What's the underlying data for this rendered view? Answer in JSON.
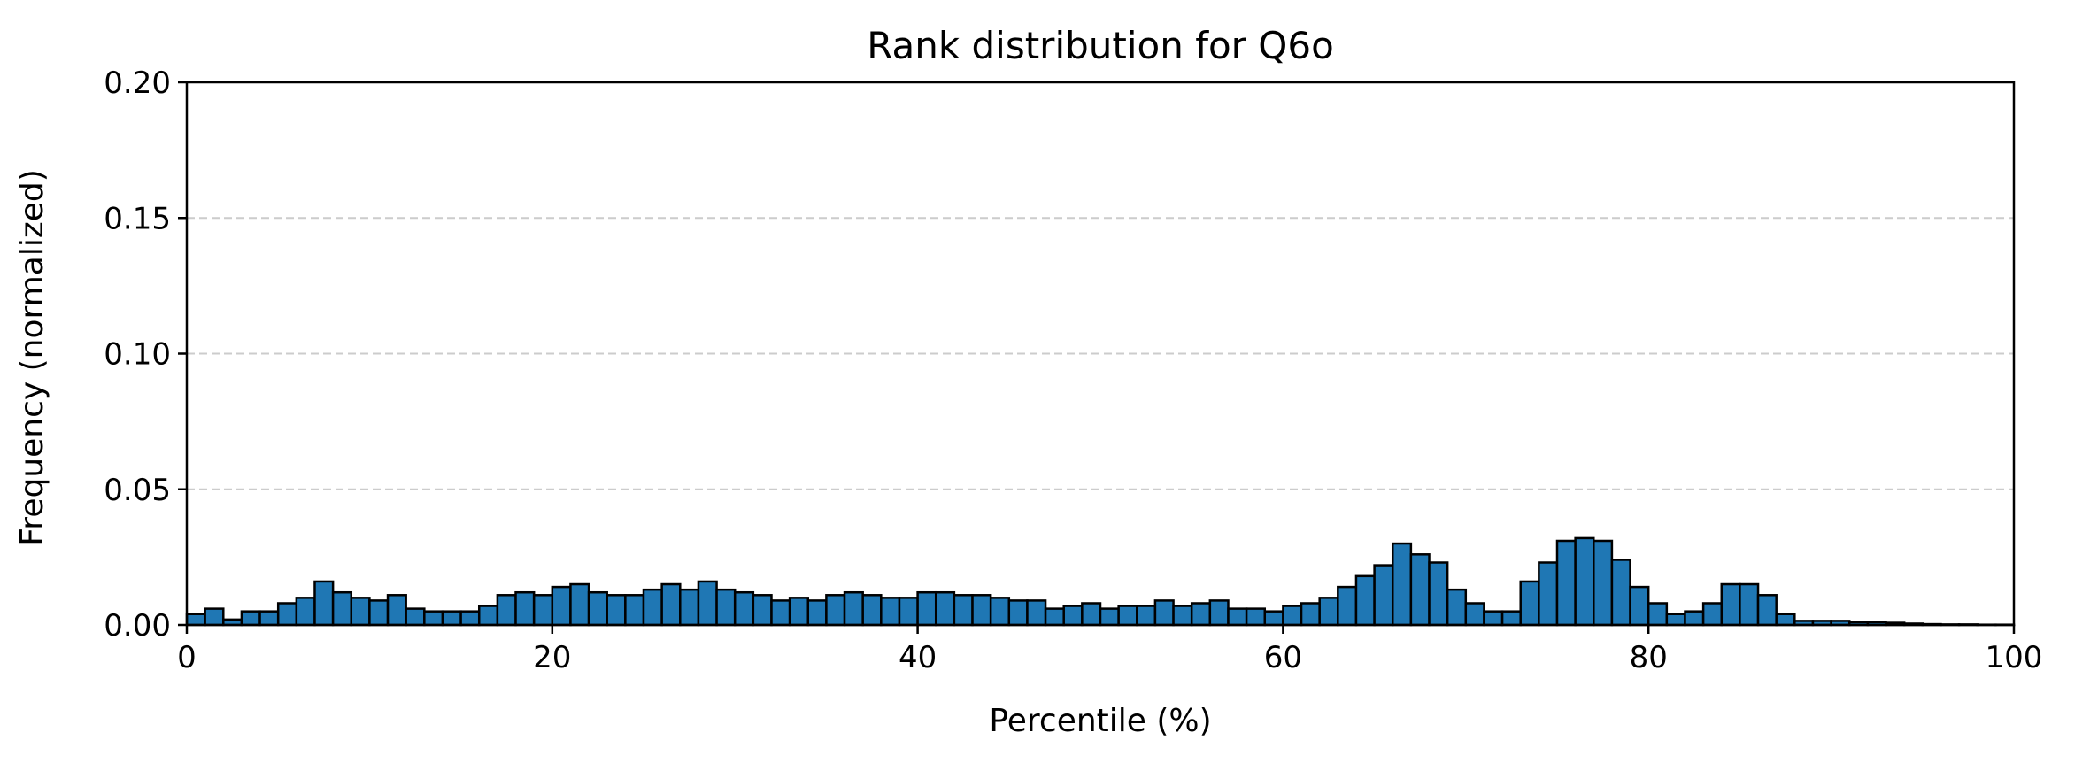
{
  "chart_data": {
    "type": "bar",
    "title": "Rank distribution for Q6o",
    "xlabel": "Percentile (%)",
    "ylabel": "Frequency (normalized)",
    "xlim": [
      0,
      100
    ],
    "ylim": [
      0,
      0.2
    ],
    "xticks": [
      0,
      20,
      40,
      60,
      80,
      100
    ],
    "xtick_labels": [
      "0",
      "20",
      "40",
      "60",
      "80",
      "100"
    ],
    "yticks": [
      0.0,
      0.05,
      0.1,
      0.15,
      0.2
    ],
    "ytick_labels": [
      "0.00",
      "0.05",
      "0.10",
      "0.15",
      "0.20"
    ],
    "grid": "y-dashed",
    "bin_width": 1,
    "bin_starts": [
      0,
      1,
      2,
      3,
      4,
      5,
      6,
      7,
      8,
      9,
      10,
      11,
      12,
      13,
      14,
      15,
      16,
      17,
      18,
      19,
      20,
      21,
      22,
      23,
      24,
      25,
      26,
      27,
      28,
      29,
      30,
      31,
      32,
      33,
      34,
      35,
      36,
      37,
      38,
      39,
      40,
      41,
      42,
      43,
      44,
      45,
      46,
      47,
      48,
      49,
      50,
      51,
      52,
      53,
      54,
      55,
      56,
      57,
      58,
      59,
      60,
      61,
      62,
      63,
      64,
      65,
      66,
      67,
      68,
      69,
      70,
      71,
      72,
      73,
      74,
      75,
      76,
      77,
      78,
      79,
      80,
      81,
      82,
      83,
      84,
      85,
      86,
      87,
      88,
      89,
      90,
      91,
      92,
      93,
      94,
      95,
      96,
      97,
      98,
      99
    ],
    "values": [
      0.004,
      0.006,
      0.002,
      0.005,
      0.005,
      0.008,
      0.01,
      0.016,
      0.012,
      0.01,
      0.009,
      0.011,
      0.006,
      0.005,
      0.005,
      0.005,
      0.007,
      0.011,
      0.012,
      0.011,
      0.014,
      0.015,
      0.012,
      0.011,
      0.011,
      0.013,
      0.015,
      0.013,
      0.016,
      0.013,
      0.012,
      0.011,
      0.009,
      0.01,
      0.009,
      0.011,
      0.012,
      0.011,
      0.01,
      0.01,
      0.012,
      0.012,
      0.011,
      0.011,
      0.01,
      0.009,
      0.009,
      0.006,
      0.007,
      0.008,
      0.006,
      0.007,
      0.007,
      0.009,
      0.007,
      0.008,
      0.009,
      0.006,
      0.006,
      0.005,
      0.007,
      0.008,
      0.01,
      0.014,
      0.018,
      0.022,
      0.03,
      0.026,
      0.023,
      0.013,
      0.008,
      0.005,
      0.005,
      0.016,
      0.023,
      0.031,
      0.032,
      0.031,
      0.024,
      0.014,
      0.008,
      0.004,
      0.005,
      0.008,
      0.015,
      0.015,
      0.011,
      0.004,
      0.0015,
      0.0015,
      0.0015,
      0.001,
      0.001,
      0.0008,
      0.0005,
      0.0003,
      0.0002,
      0.0002,
      0.0001,
      0.0001
    ],
    "colors": {
      "bar_fill": "#1f77b4",
      "bar_edge": "#000000",
      "grid": "#cccccc",
      "axis": "#000000"
    }
  }
}
